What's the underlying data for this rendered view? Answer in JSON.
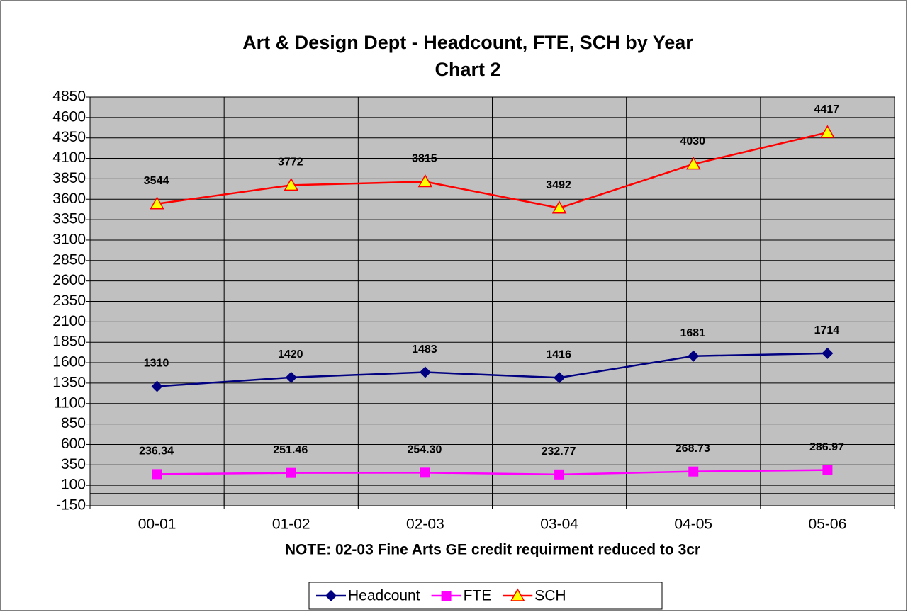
{
  "chart_data": {
    "type": "line",
    "title": "Art & Design Dept - Headcount, FTE, SCH by Year",
    "subtitle": "Chart 2",
    "x_label": "NOTE: 02-03 Fine Arts GE credit requirment reduced to 3cr",
    "categories": [
      "00-01",
      "01-02",
      "02-03",
      "03-04",
      "04-05",
      "05-06"
    ],
    "series": [
      {
        "name": "Headcount",
        "color": "#000080",
        "marker": "diamond",
        "values": [
          1310,
          1420,
          1483,
          1416,
          1681,
          1714
        ]
      },
      {
        "name": "FTE",
        "color": "#ff00ff",
        "marker": "square",
        "values": [
          236.34,
          251.46,
          254.3,
          232.77,
          268.73,
          286.97
        ],
        "value_labels": [
          "236.34",
          "251.46",
          "254.30",
          "232.77",
          "268.73",
          "286.97"
        ]
      },
      {
        "name": "SCH",
        "color": "#ff0000",
        "marker": "triangle",
        "marker_fill": "#ffff00",
        "values": [
          3544,
          3772,
          3815,
          3492,
          4030,
          4417
        ]
      }
    ],
    "ylim": [
      -150,
      4850
    ],
    "yticks": [
      -150,
      100,
      350,
      600,
      850,
      1100,
      1350,
      1600,
      1850,
      2100,
      2350,
      2600,
      2850,
      3100,
      3350,
      3600,
      3850,
      4100,
      4350,
      4600,
      4850
    ],
    "grid": true,
    "legend": "bottom",
    "plot_background": "#c0c0c0"
  }
}
